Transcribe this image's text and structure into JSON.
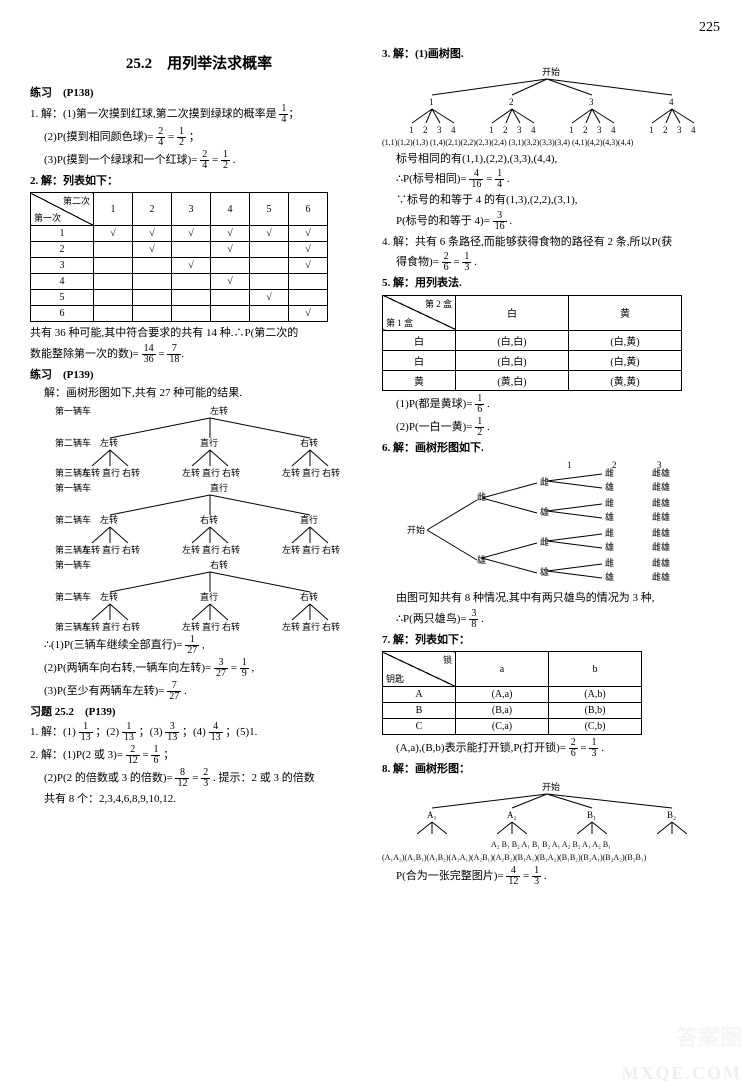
{
  "page_number": "225",
  "section_title": "25.2　用列举法求概率",
  "left": {
    "ex1_header": "练习　(P138)",
    "ex1_1": "1. 解：(1)第一次摸到红球,第二次摸到绿球的概率是",
    "ex1_1_frac_n": "1",
    "ex1_1_frac_d": "4",
    "ex1_2a": "(2)P(摸到相同颜色球)=",
    "ex1_2b_n": "2",
    "ex1_2b_d": "4",
    "ex1_2c": "=",
    "ex1_2d_n": "1",
    "ex1_2d_d": "2",
    "ex1_2e": "；",
    "ex1_3a": "(3)P(摸到一个绿球和一个红球)=",
    "ex1_3b_n": "2",
    "ex1_3b_d": "4",
    "ex1_3c": "=",
    "ex1_3d_n": "1",
    "ex1_3d_d": "2",
    "ex1_3e": ".",
    "ex2_header": "2. 解：列表如下：",
    "t1_diag_a": "第二次",
    "t1_diag_b": "第一次",
    "t1_cols": [
      "1",
      "2",
      "3",
      "4",
      "5",
      "6"
    ],
    "t1_rows": [
      "1",
      "2",
      "3",
      "4",
      "5",
      "6"
    ],
    "t1_check": "√",
    "t1_pattern": [
      [
        1,
        1,
        1,
        1,
        1,
        1
      ],
      [
        0,
        1,
        0,
        1,
        0,
        1
      ],
      [
        0,
        0,
        1,
        0,
        0,
        1
      ],
      [
        0,
        0,
        0,
        1,
        0,
        0
      ],
      [
        0,
        0,
        0,
        0,
        1,
        0
      ],
      [
        0,
        0,
        0,
        0,
        0,
        1
      ]
    ],
    "t1_foot_a": "共有 36 种可能,其中符合要求的共有 14 种.∴P(第二次的",
    "t1_foot_b": "数能整除第一次的数)=",
    "t1_foot_n1": "14",
    "t1_foot_d1": "36",
    "eq": "=",
    "t1_foot_n2": "7",
    "t1_foot_d2": "18",
    "ex3_header": "练习　(P139)",
    "ex3_a": "解：画树形图如下,共有 27 种可能的结果.",
    "tree_labels": {
      "car1": "第一辆车",
      "car2": "第二辆车",
      "car3": "第三辆车",
      "left": "左转",
      "straight": "直行",
      "right": "右转"
    },
    "p1a": "∴(1)P(三辆车继续全部直行)=",
    "p1n": "1",
    "p1d": "27",
    "p1e": ",",
    "p2a": "(2)P(两辆车向右转,一辆车向左转)=",
    "p2n": "3",
    "p2d": "27",
    "p2m": "=",
    "p2n2": "1",
    "p2d2": "9",
    "p2e": ",",
    "p3a": "(3)P(至少有两辆车左转)=",
    "p3n": "7",
    "p3d": "27",
    "p3e": ".",
    "ex4_header": "习题 25.2　(P139)",
    "ex4_1": "1. 解：(1)",
    "f1n": "1",
    "f1d": "13",
    "s2": "；(2)",
    "f2n": "1",
    "f2d": "13",
    "s3": "；(3)",
    "f3n": "3",
    "f3d": "13",
    "s4": "；(4)",
    "f4n": "4",
    "f4d": "13",
    "s5": "；(5)1.",
    "ex4_2a": "2. 解：(1)P(2 或 3)=",
    "e2n": "2",
    "e2d": "12",
    "e2m": "=",
    "e2n2": "1",
    "e2d2": "6",
    "e2e": "；",
    "ex4_2b": "(2)P(2 的倍数或 3 的倍数)=",
    "e3n": "8",
    "e3d": "12",
    "e3m": "=",
    "e3n2": "2",
    "e3d2": "3",
    "e3e": ". 提示：2 或 3 的倍数",
    "ex4_2c": "共有 8 个：2,3,4,6,8,9,10,12."
  },
  "right": {
    "r3_header": "3. 解：(1)画树图.",
    "r3_start": "开始",
    "r3_pairs": "(1,1)(1,2)(1,3) (1,4)(2,1)(2,2)(2,3)(2,4) (3,1)(3,2)(3,3)(3,4) (4,1)(4,2)(4,3)(4,4)",
    "r3_a": "标号相同的有(1,1),(2,2),(3,3),(4,4),",
    "r3_b": "∴P(标号相同)=",
    "r3_bn": "4",
    "r3_bd": "16",
    "r3_bm": "=",
    "r3_bn2": "1",
    "r3_bd2": "4",
    "r3_be": ".",
    "r3_c": "∵标号的和等于 4 的有(1,3),(2,2),(3,1),",
    "r3_d": "P(标号的和等于 4)=",
    "r3_dn": "3",
    "r3_dd": "16",
    "r3_de": ".",
    "r4_a": "4. 解：共有 6 条路径,而能够获得食物的路径有 2 条,所以P(获",
    "r4_b": "得食物)=",
    "r4_bn": "2",
    "r4_bd": "6",
    "r4_bm": "=",
    "r4_bn2": "1",
    "r4_bd2": "3",
    "r4_be": ".",
    "r5_header": "5. 解：用列表法.",
    "t2_diag_a": "第 2 盒",
    "t2_diag_b": "第 1 盒",
    "t2_cols": [
      "白",
      "黄"
    ],
    "t2_rows": [
      "白",
      "白",
      "黄"
    ],
    "t2_cells": [
      [
        "(白,白)",
        "(白,黄)"
      ],
      [
        "(白,白)",
        "(白,黄)"
      ],
      [
        "(黄,白)",
        "(黄,黄)"
      ]
    ],
    "r5_a": "(1)P(都是黄球)=",
    "r5_an": "1",
    "r5_ad": "6",
    "r5_ae": ".",
    "r5_b": "(2)P(一白一黄)=",
    "r5_bn": "1",
    "r5_bd": "2",
    "r5_be": ".",
    "r6_header": "6. 解：画树形图如下.",
    "r6_start": "开始",
    "r6_labels": [
      "1",
      "2",
      "3",
      "雌",
      "雄",
      "雌雄",
      "雌雄",
      "雌雄",
      "雌雄"
    ],
    "r6_a": "由图可知共有 8 种情况,其中有两只雄鸟的情况为 3 种,",
    "r6_b": "∴P(两只雄鸟)=",
    "r6_bn": "3",
    "r6_bd": "8",
    "r6_be": ".",
    "r7_header": "7. 解：列表如下：",
    "t3_diag_a": "锁",
    "t3_diag_b": "钥匙",
    "t3_cols": [
      "a",
      "b"
    ],
    "t3_rows": [
      "A",
      "B",
      "C"
    ],
    "t3_cells": [
      [
        "(A,a)",
        "(A,b)"
      ],
      [
        "(B,a)",
        "(B,b)"
      ],
      [
        "(C,a)",
        "(C,b)"
      ]
    ],
    "r7_a": "(A,a),(B,b)表示能打开锁,P(打开锁)=",
    "r7_an": "2",
    "r7_ad": "6",
    "r7_am": "=",
    "r7_an2": "1",
    "r7_ad2": "3",
    "r7_ae": ".",
    "r8_header": "8. 解：画树形图：",
    "r8_start": "开始",
    "r8_L1": [
      "A₁",
      "A₂",
      "B₁",
      "B₂"
    ],
    "r8_L2": "A₂  B₁  B₂  A₁  B₁  B₂  A₁  A₂  B₂  A₁  A₂  B₁",
    "r8_pairs": "(A₁A₂)(A₁B₁)(A₁B₂)(A₂A₁)(A₂B₁)(A₂B₂)(B₁A₁)(B₁A₂)(B₁B₂)(B₂A₁)(B₂A₂)(B₂B₁)",
    "r8_a": "P(合为一张完整图片)=",
    "r8_an": "4",
    "r8_ad": "12",
    "r8_am": "=",
    "r8_an2": "1",
    "r8_ad2": "3",
    "r8_ae": "."
  },
  "watermark": "MXQE.COM",
  "watermark2": "答案圈"
}
